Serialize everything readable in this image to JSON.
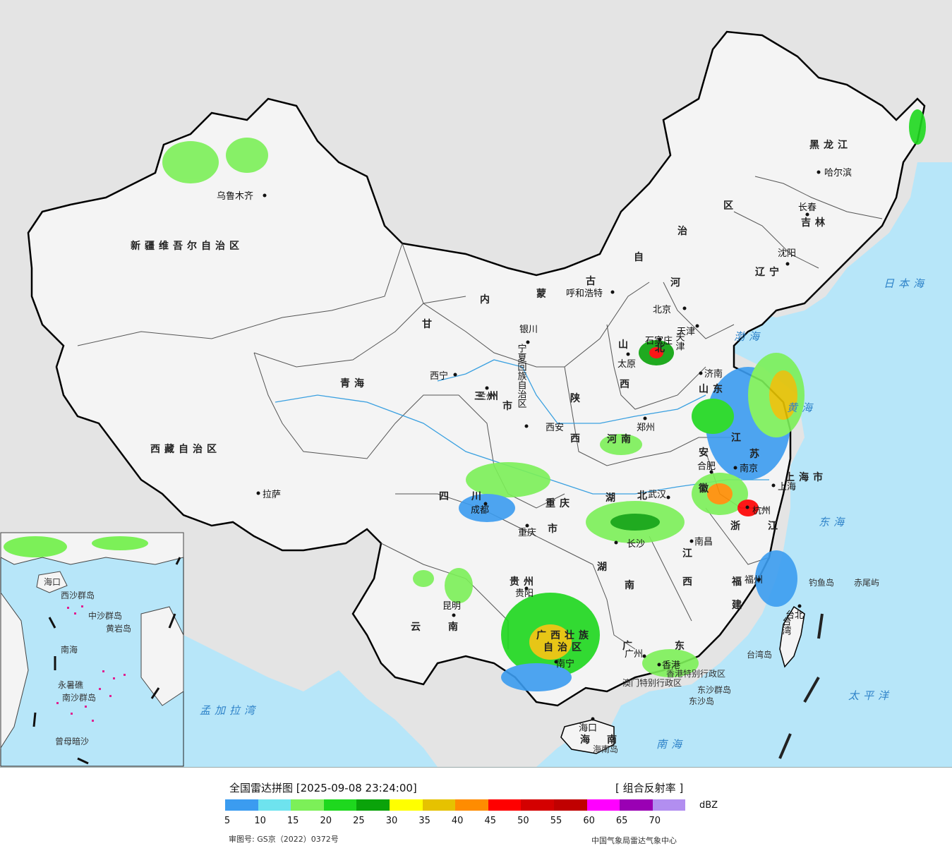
{
  "map": {
    "provinces": [
      {
        "name": "新疆维吾尔自治区"
      },
      {
        "name": "西藏自治区"
      },
      {
        "name": "青海"
      },
      {
        "name": "甘"
      },
      {
        "name": "内"
      },
      {
        "name": "蒙"
      },
      {
        "name": "古"
      },
      {
        "name": "自"
      },
      {
        "name": "治"
      },
      {
        "name": "区"
      },
      {
        "name": "黑龙江"
      },
      {
        "name": "吉林"
      },
      {
        "name": "辽宁"
      },
      {
        "name": "河"
      },
      {
        "name": "北"
      },
      {
        "name": "山"
      },
      {
        "name": "西"
      },
      {
        "name": "山东"
      },
      {
        "name": "陕"
      },
      {
        "name": "西"
      },
      {
        "name": "河南"
      },
      {
        "name": "江"
      },
      {
        "name": "苏"
      },
      {
        "name": "安"
      },
      {
        "name": "徽"
      },
      {
        "name": "湖"
      },
      {
        "name": "北"
      },
      {
        "name": "四"
      },
      {
        "name": "川"
      },
      {
        "name": "重庆"
      },
      {
        "name": "市"
      },
      {
        "name": "贵州"
      },
      {
        "name": "云"
      },
      {
        "name": "南"
      },
      {
        "name": "湖"
      },
      {
        "name": "南"
      },
      {
        "name": "江"
      },
      {
        "name": "西"
      },
      {
        "name": "浙"
      },
      {
        "name": "江"
      },
      {
        "name": "福"
      },
      {
        "name": "建"
      },
      {
        "name": "广西壮族"
      },
      {
        "name": "自治区"
      },
      {
        "name": "广"
      },
      {
        "name": "东"
      },
      {
        "name": "海"
      },
      {
        "name": "南"
      },
      {
        "name": "上海市"
      },
      {
        "name": "宁夏回族自治区"
      },
      {
        "name": "三州"
      },
      {
        "name": "市"
      },
      {
        "name": "天津"
      },
      {
        "name": "台湾"
      }
    ],
    "cities": [
      {
        "name": "乌鲁木齐"
      },
      {
        "name": "拉萨"
      },
      {
        "name": "西宁"
      },
      {
        "name": "兰州"
      },
      {
        "name": "银川"
      },
      {
        "name": "呼和浩特"
      },
      {
        "name": "北京"
      },
      {
        "name": "天津"
      },
      {
        "name": "石家庄"
      },
      {
        "name": "太原"
      },
      {
        "name": "济南"
      },
      {
        "name": "郑州"
      },
      {
        "name": "西安"
      },
      {
        "name": "成都"
      },
      {
        "name": "重庆"
      },
      {
        "name": "贵阳"
      },
      {
        "name": "昆明"
      },
      {
        "name": "南宁"
      },
      {
        "name": "长沙"
      },
      {
        "name": "武汉"
      },
      {
        "name": "合肥"
      },
      {
        "name": "南京"
      },
      {
        "name": "上海"
      },
      {
        "name": "杭州"
      },
      {
        "name": "南昌"
      },
      {
        "name": "福州"
      },
      {
        "name": "台北"
      },
      {
        "name": "广州"
      },
      {
        "name": "香港"
      },
      {
        "name": "海口"
      },
      {
        "name": "沈阳"
      },
      {
        "name": "长春"
      },
      {
        "name": "哈尔滨"
      }
    ],
    "seas": [
      {
        "name": "日本海"
      },
      {
        "name": "渤海"
      },
      {
        "name": "黄海"
      },
      {
        "name": "东海"
      },
      {
        "name": "太平洋"
      },
      {
        "name": "南海"
      },
      {
        "name": "孟加拉湾"
      }
    ],
    "islands": [
      {
        "name": "钓鱼岛"
      },
      {
        "name": "赤尾屿"
      },
      {
        "name": "台湾岛"
      },
      {
        "name": "东沙群岛"
      },
      {
        "name": "东沙岛"
      },
      {
        "name": "海南岛"
      },
      {
        "name": "香港特别行政区"
      },
      {
        "name": "澳门特别行政区"
      }
    ],
    "inset": {
      "labels": [
        {
          "name": "海口"
        },
        {
          "name": "西沙群岛"
        },
        {
          "name": "中沙群岛"
        },
        {
          "name": "黄岩岛"
        },
        {
          "name": "南海"
        },
        {
          "name": "南沙群岛"
        },
        {
          "name": "永暑礁"
        },
        {
          "name": "曾母暗沙"
        }
      ]
    }
  },
  "legend": {
    "title": "全国雷达拼图 [2025-09-08 23:24:00]",
    "product": "[ 组合反射率 ]",
    "unit": "dBZ",
    "approval": "审图号: GS京（2022）0372号",
    "source": "中国气象局雷达气象中心",
    "ticks": [
      "5",
      "10",
      "15",
      "20",
      "25",
      "30",
      "35",
      "40",
      "45",
      "50",
      "55",
      "60",
      "65",
      "70"
    ],
    "colors": [
      "#3b9cf0",
      "#6ee3ee",
      "#7cf058",
      "#1ed81e",
      "#0aa30a",
      "#ffff00",
      "#e6c200",
      "#ff8c00",
      "#ff0000",
      "#d40000",
      "#c00000",
      "#ff00ff",
      "#9a00b4",
      "#b28ef0"
    ]
  }
}
